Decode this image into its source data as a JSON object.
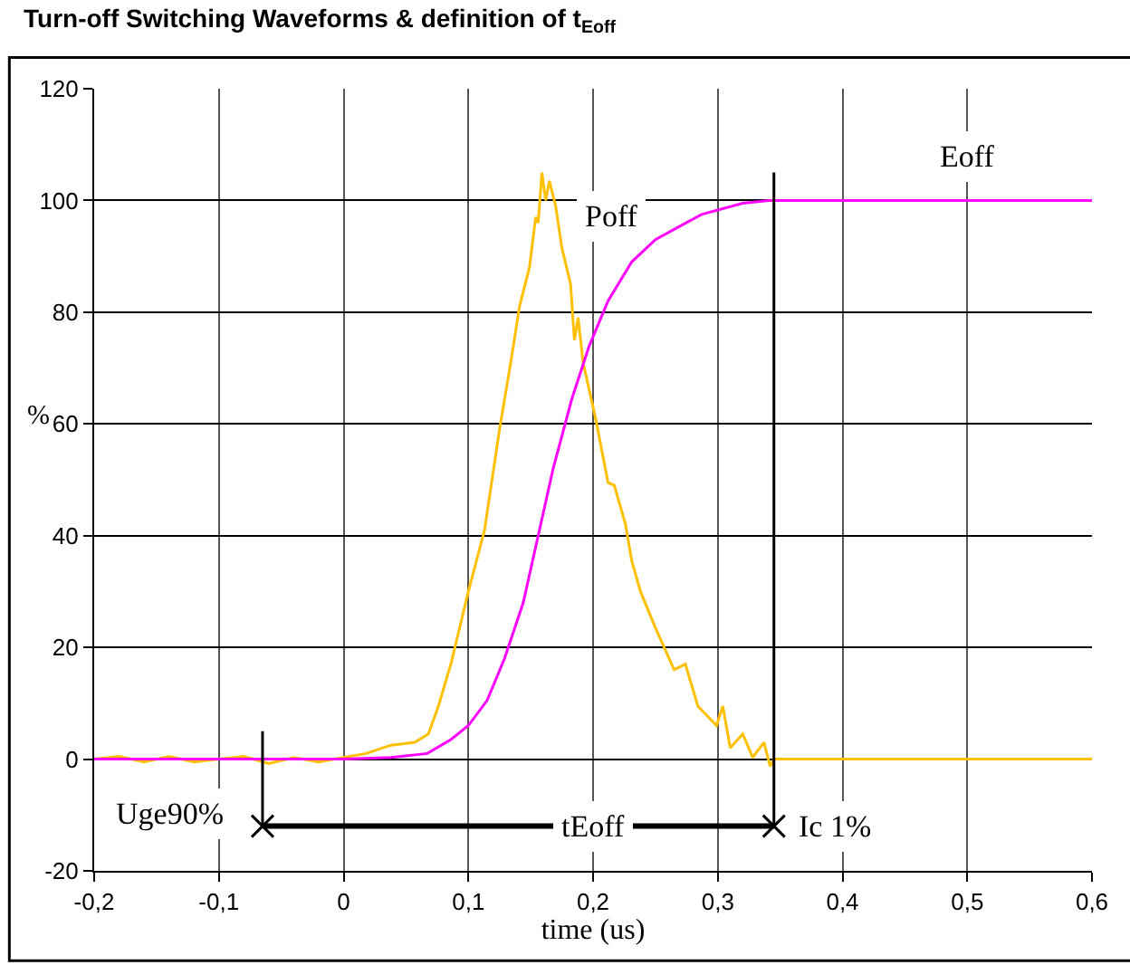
{
  "chart_data": {
    "type": "line",
    "title": "Turn-off Switching Waveforms & definition of t$_{Eoff}$",
    "xlabel": "time (us)",
    "ylabel": "%",
    "xlim": [
      -0.2,
      0.6
    ],
    "ylim": [
      -20,
      120
    ],
    "xticks": [
      {
        "value": -0.2,
        "label": "-0,2"
      },
      {
        "value": -0.1,
        "label": "-0,1"
      },
      0,
      {
        "value": 0.1,
        "label": "0,1"
      },
      {
        "value": 0.2,
        "label": "0,2"
      },
      {
        "value": 0.3,
        "label": "0,3"
      },
      {
        "value": 0.4,
        "label": "0,4"
      },
      {
        "value": 0.5,
        "label": "0,5"
      },
      {
        "value": 0.6,
        "label": "0,6"
      }
    ],
    "yticks": [
      -20,
      0,
      20,
      40,
      60,
      80,
      100,
      120
    ],
    "grid": true,
    "line_style": "solid",
    "series": [
      {
        "color": "#ffc000",
        "x": [
          -0.2,
          -0.18,
          -0.16,
          -0.14,
          -0.12,
          -0.1,
          -0.08,
          -0.06,
          -0.04,
          -0.02,
          0,
          0.018,
          0.038,
          0.057,
          0.068,
          0.076,
          0.086,
          0.1,
          0.113,
          0.125,
          0.134,
          0.141,
          0.149,
          0.154,
          0.156,
          0.159,
          0.162,
          0.165,
          0.17,
          0.175,
          0.182,
          0.185,
          0.188,
          0.192,
          0.202,
          0.212,
          0.217,
          0.226,
          0.231,
          0.238,
          0.25,
          0.265,
          0.274,
          0.284,
          0.299,
          0.304,
          0.31,
          0.32,
          0.328,
          0.337,
          0.342,
          0.345,
          0.6
        ],
        "values": [
          0,
          0.5,
          -0.5,
          0.5,
          -0.5,
          0,
          0.5,
          -0.8,
          0.3,
          -0.5,
          0.3,
          1,
          2.5,
          3,
          4.5,
          9.5,
          17,
          30,
          41,
          59,
          71,
          81,
          88,
          97,
          96,
          105,
          100,
          103.5,
          99,
          91.5,
          85,
          75,
          79,
          71,
          61,
          49.5,
          49,
          42,
          35.5,
          30,
          23.5,
          16,
          17,
          9.5,
          6,
          9.5,
          2,
          4.5,
          0.3,
          3,
          -1.3,
          0,
          0
        ]
      },
      {
        "color": "#ff00ff",
        "x": [
          -0.2,
          0,
          0.038,
          0.067,
          0.086,
          0.1,
          0.115,
          0.129,
          0.144,
          0.156,
          0.168,
          0.183,
          0.197,
          0.212,
          0.231,
          0.25,
          0.287,
          0.32,
          0.341,
          0.6
        ],
        "values": [
          0,
          0,
          0.3,
          1,
          3.5,
          6,
          10.5,
          18,
          28,
          40,
          52,
          64.5,
          74,
          82,
          89,
          93,
          97.5,
          99.5,
          100,
          100
        ]
      },
      {
        "color": "#000000",
        "x": [
          -0.065,
          0.345
        ],
        "values": [
          -12,
          -12
        ],
        "marker": "cross"
      },
      {
        "color": "#000000",
        "x": [
          -0.065,
          -0.065
        ],
        "values": [
          -12,
          5
        ]
      },
      {
        "color": "#000000",
        "x": [
          0.345,
          0.345
        ],
        "values": [
          -12,
          105
        ]
      }
    ],
    "annotations": [
      {
        "text": "Poff",
        "x": 0.215,
        "y": 97
      },
      {
        "text": "Eoff",
        "x": 0.5,
        "y": 108
      },
      "Uge90%",
      {
        "text": "tEoff",
        "x": 0.2,
        "y": -12
      },
      "Ic 1%"
    ]
  }
}
